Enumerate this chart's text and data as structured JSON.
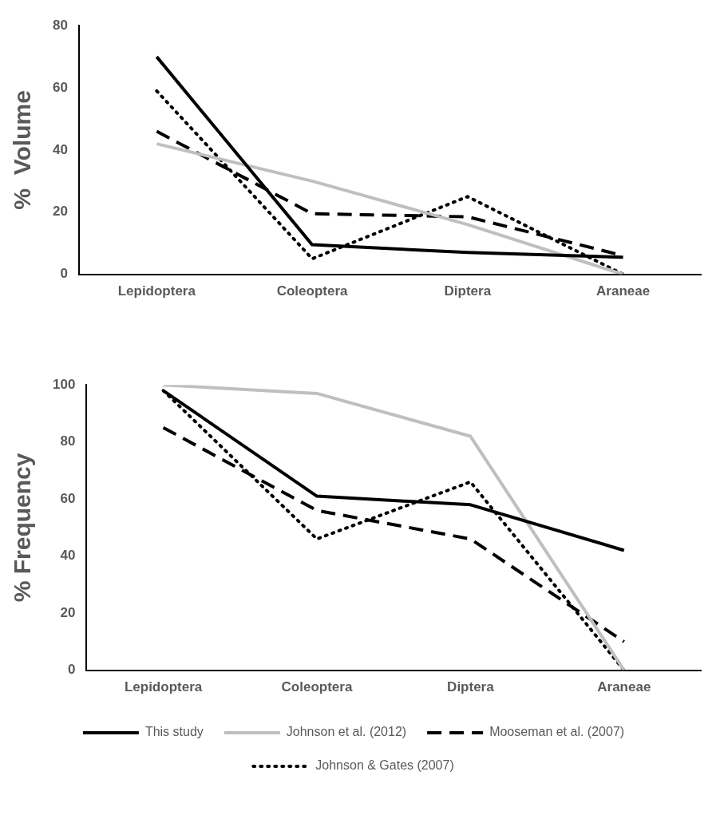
{
  "chart_data": [
    {
      "type": "line",
      "ylabel": "%  Volume",
      "categories": [
        "Lepidoptera",
        "Coleoptera",
        "Diptera",
        "Araneae"
      ],
      "ylim": [
        0,
        80
      ],
      "yticks": [
        0,
        20,
        40,
        60,
        80
      ],
      "grid": false,
      "legend": false,
      "marker": "none",
      "series": [
        {
          "color": "#000000",
          "line_style": "solid",
          "values": [
            70,
            9.5,
            7,
            5.5
          ]
        },
        {
          "color": "#bfbfbf",
          "line_style": "solid",
          "values": [
            42,
            30,
            16,
            0
          ]
        },
        {
          "color": "#000000",
          "line_style": "dashed",
          "values": [
            46,
            19.5,
            18.5,
            6
          ]
        },
        {
          "color": "#000000",
          "line_style": "dotted",
          "values": [
            59,
            5,
            25,
            0
          ]
        }
      ]
    },
    {
      "type": "line",
      "ylabel": "% Frequency",
      "categories": [
        "Lepidoptera",
        "Coleoptera",
        "Diptera",
        "Araneae"
      ],
      "ylim": [
        0,
        100
      ],
      "yticks": [
        0,
        20,
        40,
        60,
        80,
        100
      ],
      "grid": false,
      "legend": "bottom",
      "marker": "none",
      "series": [
        {
          "name": "This study",
          "color": "#000000",
          "line_style": "solid",
          "values": [
            98,
            61,
            58,
            42
          ]
        },
        {
          "name": "Johnson et al. (2012)",
          "color": "#bfbfbf",
          "line_style": "solid",
          "values": [
            100,
            97,
            82,
            0
          ]
        },
        {
          "name": "Mooseman et al. (2007)",
          "color": "#000000",
          "line_style": "dashed",
          "values": [
            85,
            56,
            46,
            10
          ]
        },
        {
          "name": "Johnson & Gates (2007)",
          "color": "#000000",
          "line_style": "dotted",
          "values": [
            98,
            46,
            66,
            0
          ]
        }
      ]
    }
  ]
}
